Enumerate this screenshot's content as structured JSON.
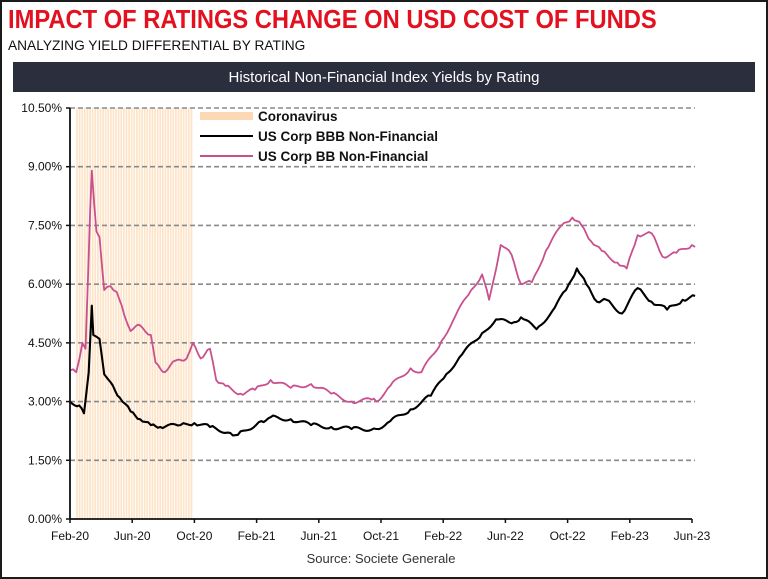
{
  "header": {
    "title": "IMPACT OF RATINGS CHANGE ON USD COST OF FUNDS",
    "subtitle": "ANALYZING YIELD DIFFERENTIAL BY RATING",
    "banner": "Historical Non-Financial Index Yields by Rating"
  },
  "source": "Source: Societe Generale",
  "colors": {
    "title": "#e3101f",
    "banner_bg": "#2b2e3d",
    "bbb": "#000000",
    "bb": "#c9508f",
    "shade": "#fcd9b4",
    "grid": "#8a8a8a"
  },
  "chart_data": {
    "type": "line",
    "title": "Historical Non-Financial Index Yields by Rating",
    "xlabel": "",
    "ylabel": "",
    "x_unit": "months since Feb-20",
    "xlim": [
      0,
      40
    ],
    "ylim": [
      0,
      10.5
    ],
    "y_ticks": [
      0,
      1.5,
      3.0,
      4.5,
      6.0,
      7.5,
      9.0,
      10.5
    ],
    "y_tick_labels": [
      "0.00%",
      "1.50%",
      "3.00%",
      "4.50%",
      "6.00%",
      "7.50%",
      "9.00%",
      "10.50%"
    ],
    "x_ticks": [
      0,
      4,
      8,
      12,
      16,
      20,
      24,
      28,
      32,
      36,
      40
    ],
    "x_tick_labels": [
      "Feb-20",
      "Jun-20",
      "Oct-20",
      "Feb-21",
      "Jun-21",
      "Oct-21",
      "Feb-22",
      "Jun-22",
      "Oct-22",
      "Feb-23",
      "Jun-23"
    ],
    "grid": "horizontal dashed",
    "legend_position": "top-left",
    "shaded_regions": [
      {
        "name": "Coronavirus",
        "x_start": 0.4,
        "x_end": 7.9
      }
    ],
    "series": [
      {
        "name": "US Corp BBB Non-Financial",
        "points": [
          [
            0,
            3.0
          ],
          [
            0.6,
            2.9
          ],
          [
            0.9,
            2.7
          ],
          [
            1.2,
            3.75
          ],
          [
            1.4,
            5.45
          ],
          [
            1.5,
            4.7
          ],
          [
            1.9,
            4.6
          ],
          [
            2.2,
            3.7
          ],
          [
            2.6,
            3.5
          ],
          [
            3.2,
            3.1
          ],
          [
            3.9,
            2.75
          ],
          [
            4.5,
            2.55
          ],
          [
            5.2,
            2.4
          ],
          [
            5.8,
            2.35
          ],
          [
            7.1,
            2.4
          ],
          [
            8.0,
            2.45
          ],
          [
            9.0,
            2.35
          ],
          [
            10.3,
            2.2
          ],
          [
            10.8,
            2.15
          ],
          [
            12.3,
            2.5
          ],
          [
            12.9,
            2.6
          ],
          [
            14.2,
            2.55
          ],
          [
            15.5,
            2.4
          ],
          [
            16.8,
            2.35
          ],
          [
            18.1,
            2.3
          ],
          [
            19.7,
            2.3
          ],
          [
            20.6,
            2.5
          ],
          [
            21.9,
            2.8
          ],
          [
            23.2,
            3.15
          ],
          [
            24.2,
            3.7
          ],
          [
            25.2,
            4.2
          ],
          [
            26.5,
            4.75
          ],
          [
            27.4,
            5.1
          ],
          [
            28.4,
            5.0
          ],
          [
            29.0,
            5.15
          ],
          [
            30.0,
            4.85
          ],
          [
            31.0,
            5.3
          ],
          [
            31.9,
            5.85
          ],
          [
            32.6,
            6.4
          ],
          [
            33.2,
            6.0
          ],
          [
            33.9,
            5.55
          ],
          [
            34.5,
            5.6
          ],
          [
            35.5,
            5.25
          ],
          [
            36.5,
            5.9
          ],
          [
            37.4,
            5.55
          ],
          [
            38.4,
            5.35
          ],
          [
            39.4,
            5.6
          ],
          [
            40.2,
            5.7
          ]
        ]
      },
      {
        "name": "US Corp BB Non-Financial",
        "points": [
          [
            0,
            3.8
          ],
          [
            0.4,
            3.75
          ],
          [
            0.8,
            4.5
          ],
          [
            1.0,
            4.35
          ],
          [
            1.3,
            7.9
          ],
          [
            1.4,
            8.9
          ],
          [
            1.7,
            7.35
          ],
          [
            1.9,
            7.2
          ],
          [
            2.2,
            5.85
          ],
          [
            2.6,
            5.95
          ],
          [
            3.0,
            5.8
          ],
          [
            3.5,
            5.2
          ],
          [
            3.9,
            4.8
          ],
          [
            4.5,
            4.95
          ],
          [
            5.2,
            4.7
          ],
          [
            5.5,
            4.0
          ],
          [
            6.1,
            3.75
          ],
          [
            6.8,
            4.05
          ],
          [
            7.5,
            4.1
          ],
          [
            7.9,
            4.5
          ],
          [
            8.4,
            4.1
          ],
          [
            9.0,
            4.35
          ],
          [
            9.4,
            3.55
          ],
          [
            10.0,
            3.4
          ],
          [
            10.96,
            3.2
          ],
          [
            11.9,
            3.3
          ],
          [
            12.9,
            3.55
          ],
          [
            14.2,
            3.35
          ],
          [
            15.5,
            3.45
          ],
          [
            16.8,
            3.2
          ],
          [
            18.1,
            3.0
          ],
          [
            19.4,
            3.05
          ],
          [
            19.7,
            3.0
          ],
          [
            20.6,
            3.4
          ],
          [
            21.9,
            3.85
          ],
          [
            22.6,
            3.75
          ],
          [
            23.9,
            4.55
          ],
          [
            24.8,
            5.2
          ],
          [
            25.8,
            5.85
          ],
          [
            26.5,
            6.25
          ],
          [
            26.95,
            5.6
          ],
          [
            27.7,
            7.0
          ],
          [
            28.4,
            6.75
          ],
          [
            29.0,
            6.0
          ],
          [
            29.7,
            6.05
          ],
          [
            30.6,
            6.85
          ],
          [
            31.6,
            7.5
          ],
          [
            32.3,
            7.7
          ],
          [
            32.9,
            7.5
          ],
          [
            33.5,
            7.1
          ],
          [
            34.2,
            6.85
          ],
          [
            35.2,
            6.55
          ],
          [
            35.8,
            6.4
          ],
          [
            36.5,
            7.25
          ],
          [
            37.4,
            7.3
          ],
          [
            38.1,
            6.7
          ],
          [
            39.0,
            6.8
          ],
          [
            40.0,
            7.0
          ],
          [
            40.2,
            6.95
          ]
        ]
      }
    ]
  }
}
